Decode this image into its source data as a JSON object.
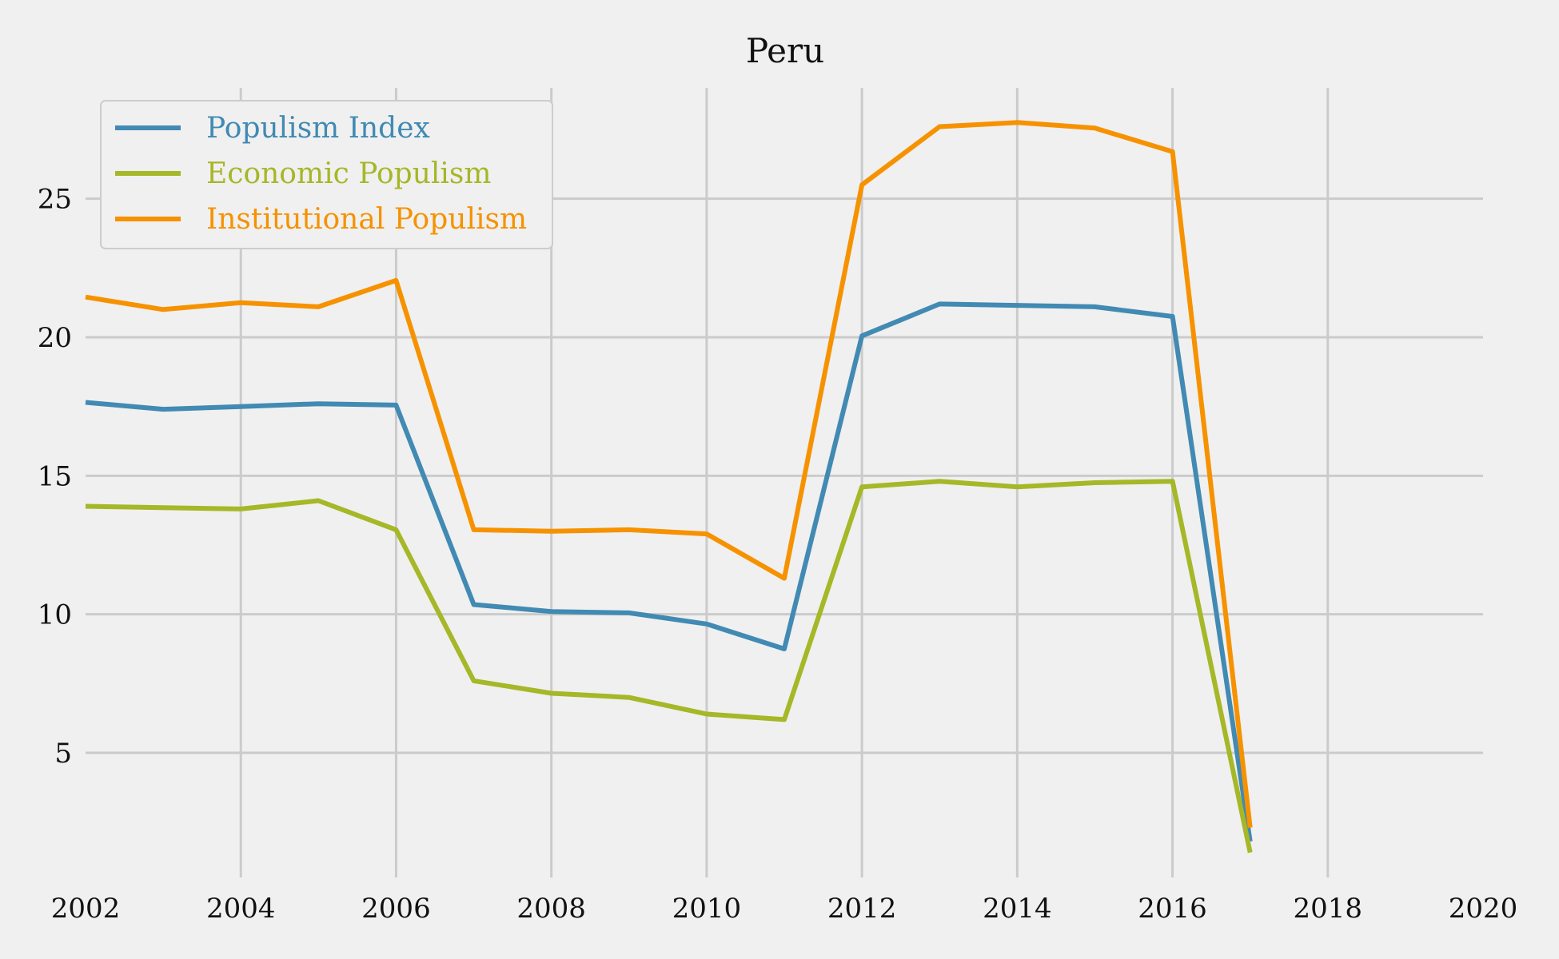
{
  "chart_data": {
    "type": "line",
    "title": "Peru",
    "xlabel": "",
    "ylabel": "",
    "xlim": [
      2002,
      2020
    ],
    "ylim": [
      0.5,
      29
    ],
    "x_ticks": [
      2002,
      2004,
      2006,
      2008,
      2010,
      2012,
      2014,
      2016,
      2018,
      2020
    ],
    "y_ticks": [
      5,
      10,
      15,
      20,
      25
    ],
    "grid": true,
    "legend_position": "top-left",
    "x": [
      2002,
      2003,
      2004,
      2005,
      2006,
      2007,
      2008,
      2009,
      2010,
      2011,
      2012,
      2013,
      2014,
      2015,
      2016,
      2017
    ],
    "series": [
      {
        "name": "Populism Index",
        "color": "#418ab3",
        "values": [
          17.65,
          17.4,
          17.5,
          17.6,
          17.55,
          10.35,
          10.1,
          10.05,
          9.65,
          8.75,
          20.05,
          21.2,
          21.15,
          21.1,
          20.75,
          1.8
        ]
      },
      {
        "name": "Economic Populism",
        "color": "#a6b727",
        "values": [
          13.9,
          13.85,
          13.8,
          14.1,
          13.05,
          7.6,
          7.15,
          7.0,
          6.4,
          6.2,
          14.6,
          14.8,
          14.6,
          14.75,
          14.8,
          1.4
        ]
      },
      {
        "name": "Institutional Populism",
        "color": "#f69200",
        "values": [
          21.45,
          21.0,
          21.25,
          21.1,
          22.05,
          13.05,
          13.0,
          13.05,
          12.9,
          11.3,
          25.5,
          27.6,
          27.75,
          27.55,
          26.7,
          2.3
        ]
      }
    ]
  }
}
